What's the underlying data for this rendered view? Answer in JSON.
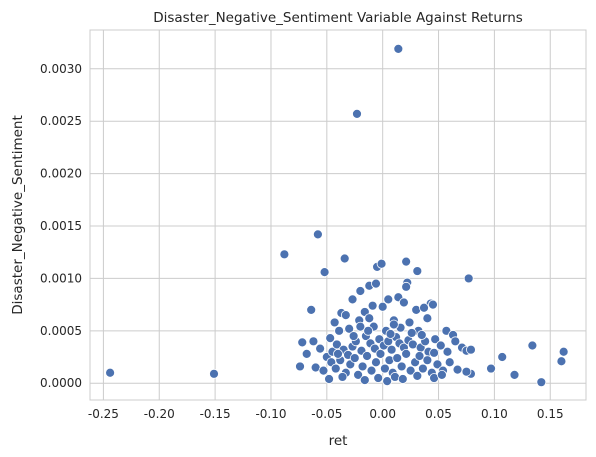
{
  "chart_data": {
    "type": "scatter",
    "title": "Disaster_Negative_Sentiment Variable Against Returns",
    "xlabel": "ret",
    "ylabel": "Disaster_Negative_Sentiment",
    "xlim": [
      -0.262,
      0.182
    ],
    "ylim": [
      -0.00016,
      0.00337
    ],
    "xticks": [
      -0.25,
      -0.2,
      -0.15,
      -0.1,
      -0.05,
      0.0,
      0.05,
      0.1,
      0.15
    ],
    "xtick_labels": [
      "-0.25",
      "-0.20",
      "-0.15",
      "-0.10",
      "-0.05",
      "0.00",
      "0.05",
      "0.10",
      "0.15"
    ],
    "yticks": [
      0.0,
      0.0005,
      0.001,
      0.0015,
      0.002,
      0.0025,
      0.003
    ],
    "ytick_labels": [
      "0.0000",
      "0.0005",
      "0.0010",
      "0.0015",
      "0.0020",
      "0.0025",
      "0.0030"
    ],
    "grid": true,
    "style": "seaborn-whitegrid",
    "colors": {
      "marker": "#4c72b0",
      "grid": "#cccccc",
      "axes": "#cccccc",
      "text": "#262626"
    },
    "points": [
      {
        "x": 0.014,
        "y": 0.00319
      },
      {
        "x": -0.023,
        "y": 0.00257
      },
      {
        "x": -0.058,
        "y": 0.00142
      },
      {
        "x": -0.088,
        "y": 0.00123
      },
      {
        "x": -0.034,
        "y": 0.00119
      },
      {
        "x": -0.052,
        "y": 0.00106
      },
      {
        "x": 0.021,
        "y": 0.00116
      },
      {
        "x": -0.005,
        "y": 0.00111
      },
      {
        "x": -0.001,
        "y": 0.00114
      },
      {
        "x": 0.031,
        "y": 0.00107
      },
      {
        "x": 0.077,
        "y": 0.001
      },
      {
        "x": -0.012,
        "y": 0.00093
      },
      {
        "x": 0.022,
        "y": 0.00096
      },
      {
        "x": 0.021,
        "y": 0.00092
      },
      {
        "x": -0.02,
        "y": 0.00088
      },
      {
        "x": -0.006,
        "y": 0.00095
      },
      {
        "x": 0.014,
        "y": 0.00082
      },
      {
        "x": -0.027,
        "y": 0.0008
      },
      {
        "x": 0.005,
        "y": 0.0008
      },
      {
        "x": 0.043,
        "y": 0.00076
      },
      {
        "x": 0.045,
        "y": 0.00075
      },
      {
        "x": -0.064,
        "y": 0.0007
      },
      {
        "x": -0.037,
        "y": 0.00067
      },
      {
        "x": -0.033,
        "y": 0.00065
      },
      {
        "x": -0.009,
        "y": 0.00074
      },
      {
        "x": 0.0,
        "y": 0.00073
      },
      {
        "x": 0.03,
        "y": 0.0007
      },
      {
        "x": 0.037,
        "y": 0.00072
      },
      {
        "x": 0.019,
        "y": 0.00077
      },
      {
        "x": -0.016,
        "y": 0.00068
      },
      {
        "x": -0.043,
        "y": 0.00058
      },
      {
        "x": -0.021,
        "y": 0.0006
      },
      {
        "x": -0.012,
        "y": 0.00062
      },
      {
        "x": 0.01,
        "y": 0.0006
      },
      {
        "x": 0.024,
        "y": 0.00058
      },
      {
        "x": 0.04,
        "y": 0.00062
      },
      {
        "x": 0.057,
        "y": 0.0005
      },
      {
        "x": 0.063,
        "y": 0.00046
      },
      {
        "x": -0.062,
        "y": 0.0004
      },
      {
        "x": -0.047,
        "y": 0.00043
      },
      {
        "x": -0.039,
        "y": 0.0005
      },
      {
        "x": -0.03,
        "y": 0.00052
      },
      {
        "x": -0.008,
        "y": 0.00054
      },
      {
        "x": 0.003,
        "y": 0.0005
      },
      {
        "x": 0.016,
        "y": 0.00053
      },
      {
        "x": 0.032,
        "y": 0.0005
      },
      {
        "x": 0.047,
        "y": 0.00042
      },
      {
        "x": -0.068,
        "y": 0.00028
      },
      {
        "x": -0.056,
        "y": 0.00033
      },
      {
        "x": -0.05,
        "y": 0.00025
      },
      {
        "x": -0.045,
        "y": 0.0003
      },
      {
        "x": -0.041,
        "y": 0.00037
      },
      {
        "x": -0.035,
        "y": 0.00032
      },
      {
        "x": -0.031,
        "y": 0.00027
      },
      {
        "x": -0.027,
        "y": 0.00035
      },
      {
        "x": -0.024,
        "y": 0.0004
      },
      {
        "x": -0.019,
        "y": 0.00031
      },
      {
        "x": -0.015,
        "y": 0.00045
      },
      {
        "x": -0.011,
        "y": 0.00038
      },
      {
        "x": -0.007,
        "y": 0.00033
      },
      {
        "x": -0.003,
        "y": 0.00042
      },
      {
        "x": 0.001,
        "y": 0.00036
      },
      {
        "x": 0.005,
        "y": 0.0004
      },
      {
        "x": 0.008,
        "y": 0.00032
      },
      {
        "x": 0.012,
        "y": 0.00044
      },
      {
        "x": 0.015,
        "y": 0.00038
      },
      {
        "x": 0.019,
        "y": 0.00034
      },
      {
        "x": 0.023,
        "y": 0.00041
      },
      {
        "x": 0.027,
        "y": 0.00037
      },
      {
        "x": 0.034,
        "y": 0.00034
      },
      {
        "x": 0.038,
        "y": 0.0004
      },
      {
        "x": 0.041,
        "y": 0.0003
      },
      {
        "x": 0.052,
        "y": 0.00036
      },
      {
        "x": 0.058,
        "y": 0.0003
      },
      {
        "x": 0.065,
        "y": 0.0004
      },
      {
        "x": 0.071,
        "y": 0.00034
      },
      {
        "x": 0.075,
        "y": 0.00031
      },
      {
        "x": 0.079,
        "y": 0.00032
      },
      {
        "x": -0.074,
        "y": 0.00016
      },
      {
        "x": -0.06,
        "y": 0.00015
      },
      {
        "x": -0.053,
        "y": 0.00012
      },
      {
        "x": -0.046,
        "y": 0.0002
      },
      {
        "x": -0.042,
        "y": 0.00014
      },
      {
        "x": -0.038,
        "y": 0.00022
      },
      {
        "x": -0.033,
        "y": 0.0001
      },
      {
        "x": -0.029,
        "y": 0.00018
      },
      {
        "x": -0.025,
        "y": 0.00024
      },
      {
        "x": -0.022,
        "y": 8e-05
      },
      {
        "x": -0.018,
        "y": 0.00016
      },
      {
        "x": -0.014,
        "y": 0.00026
      },
      {
        "x": -0.01,
        "y": 0.00012
      },
      {
        "x": -0.006,
        "y": 0.0002
      },
      {
        "x": -0.002,
        "y": 0.00028
      },
      {
        "x": 0.002,
        "y": 0.00014
      },
      {
        "x": 0.006,
        "y": 0.00022
      },
      {
        "x": 0.009,
        "y": 0.0001
      },
      {
        "x": 0.013,
        "y": 0.00024
      },
      {
        "x": 0.017,
        "y": 0.00016
      },
      {
        "x": 0.021,
        "y": 0.00028
      },
      {
        "x": 0.025,
        "y": 0.00012
      },
      {
        "x": 0.029,
        "y": 0.0002
      },
      {
        "x": 0.033,
        "y": 0.00026
      },
      {
        "x": 0.036,
        "y": 0.00014
      },
      {
        "x": 0.04,
        "y": 0.00022
      },
      {
        "x": 0.044,
        "y": 0.0001
      },
      {
        "x": 0.049,
        "y": 0.00018
      },
      {
        "x": 0.054,
        "y": 0.00012
      },
      {
        "x": 0.06,
        "y": 0.0002
      },
      {
        "x": 0.067,
        "y": 0.00013
      },
      {
        "x": -0.048,
        "y": 4e-05
      },
      {
        "x": -0.036,
        "y": 6e-05
      },
      {
        "x": -0.016,
        "y": 3e-05
      },
      {
        "x": -0.004,
        "y": 5e-05
      },
      {
        "x": 0.004,
        "y": 2e-05
      },
      {
        "x": 0.011,
        "y": 6e-05
      },
      {
        "x": 0.018,
        "y": 4e-05
      },
      {
        "x": 0.031,
        "y": 7e-05
      },
      {
        "x": 0.046,
        "y": 5e-05
      },
      {
        "x": 0.053,
        "y": 8e-05
      },
      {
        "x": -0.026,
        "y": 0.00045
      },
      {
        "x": -0.013,
        "y": 0.0005
      },
      {
        "x": 0.007,
        "y": 0.00047
      },
      {
        "x": 0.026,
        "y": 0.00048
      },
      {
        "x": 0.035,
        "y": 0.00046
      },
      {
        "x": -0.02,
        "y": 0.00054
      },
      {
        "x": 0.01,
        "y": 0.00056
      },
      {
        "x": -0.04,
        "y": 0.00028
      },
      {
        "x": 0.046,
        "y": 0.00029
      },
      {
        "x": -0.072,
        "y": 0.00039
      },
      {
        "x": 0.079,
        "y": 9e-05
      },
      {
        "x": 0.075,
        "y": 0.00011
      },
      {
        "x": 0.097,
        "y": 0.00014
      },
      {
        "x": 0.107,
        "y": 0.00025
      },
      {
        "x": 0.118,
        "y": 8e-05
      },
      {
        "x": 0.134,
        "y": 0.00036
      },
      {
        "x": 0.142,
        "y": 1e-05
      },
      {
        "x": 0.16,
        "y": 0.00021
      },
      {
        "x": 0.162,
        "y": 0.0003
      },
      {
        "x": -0.151,
        "y": 9e-05
      },
      {
        "x": -0.244,
        "y": 0.0001
      }
    ]
  }
}
